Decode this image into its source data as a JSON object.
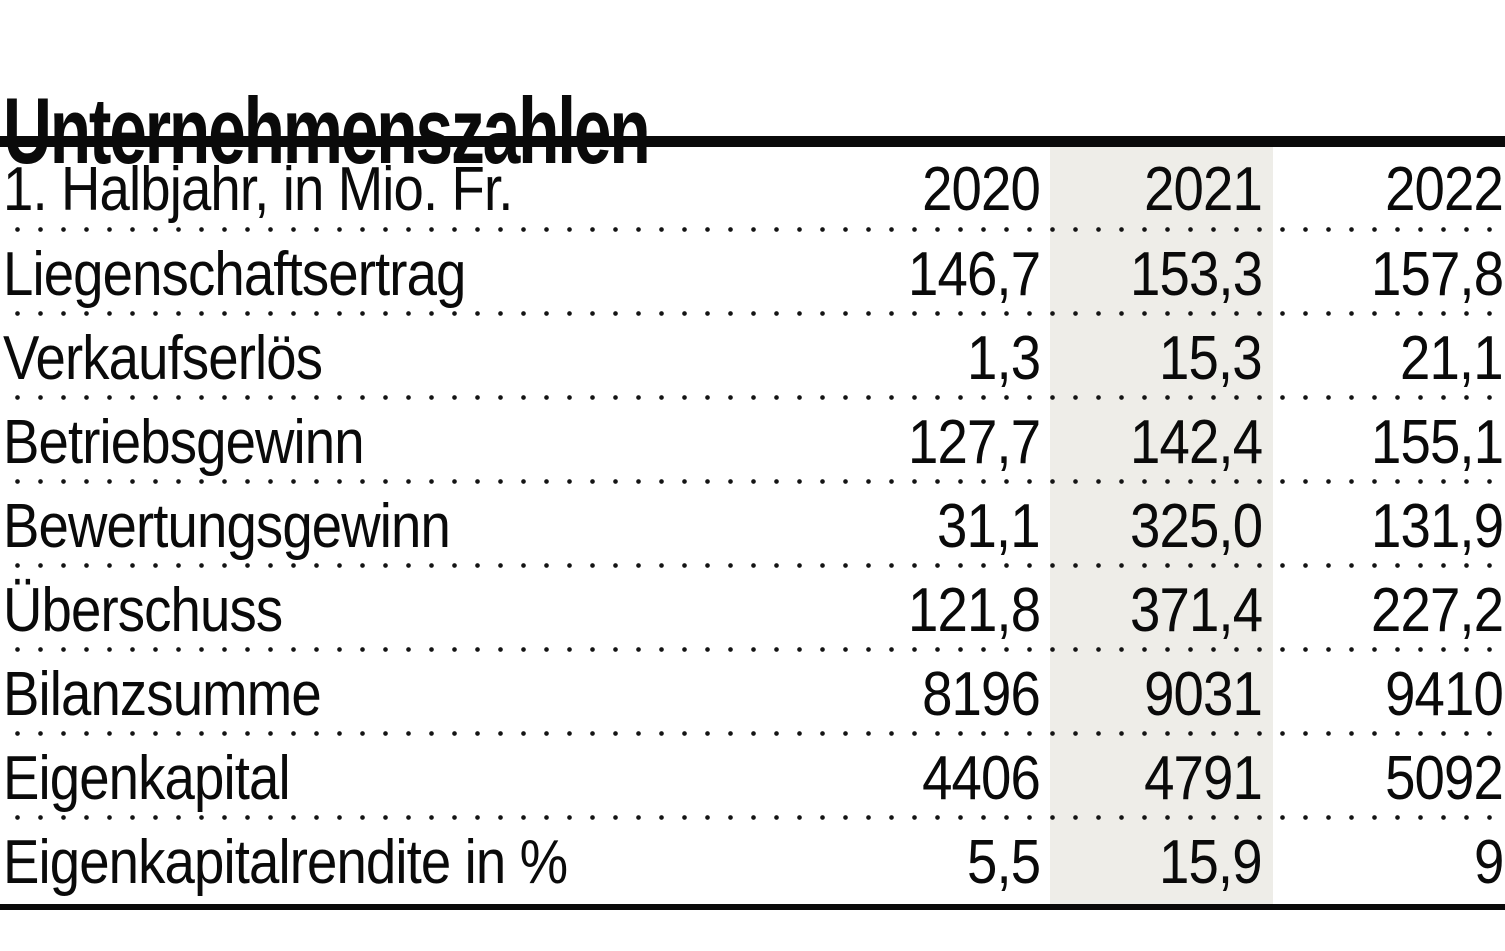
{
  "title": "Unternehmenszahlen",
  "table": {
    "header": {
      "label": "1. Halbjahr, in Mio. Fr.",
      "years": [
        "2020",
        "2021",
        "2022"
      ]
    },
    "rows": [
      {
        "label": "Liegenschaftsertrag",
        "values": [
          "146,7",
          "153,3",
          "157,8"
        ]
      },
      {
        "label": "Verkaufserlös",
        "values": [
          "1,3",
          "15,3",
          "21,1"
        ]
      },
      {
        "label": "Betriebsgewinn",
        "values": [
          "127,7",
          "142,4",
          "155,1"
        ]
      },
      {
        "label": "Bewertungsgewinn",
        "values": [
          "31,1",
          "325,0",
          "131,9"
        ]
      },
      {
        "label": "Überschuss",
        "values": [
          "121,8",
          "371,4",
          "227,2"
        ]
      },
      {
        "label": "Bilanzsumme",
        "values": [
          "8196",
          "9031",
          "9410"
        ]
      },
      {
        "label": "Eigenkapital",
        "values": [
          "4406",
          "4791",
          "5092"
        ]
      },
      {
        "label": "Eigenkapitalrendite in %",
        "values": [
          "5,5",
          "15,9",
          "9"
        ]
      }
    ],
    "highlight_column": "2021",
    "colors": {
      "highlight_band": "#eeede8",
      "text": "#0a0a0a",
      "rule": "#0a0a0a",
      "background": "#ffffff"
    }
  },
  "chart_data": {
    "type": "table",
    "title": "Unternehmenszahlen",
    "subtitle": "1. Halbjahr, in Mio. Fr.",
    "columns": [
      "2020",
      "2021",
      "2022"
    ],
    "rows": [
      {
        "label": "Liegenschaftsertrag",
        "values": [
          146.7,
          153.3,
          157.8
        ]
      },
      {
        "label": "Verkaufserlös",
        "values": [
          1.3,
          15.3,
          21.1
        ]
      },
      {
        "label": "Betriebsgewinn",
        "values": [
          127.7,
          142.4,
          155.1
        ]
      },
      {
        "label": "Bewertungsgewinn",
        "values": [
          31.1,
          325.0,
          131.9
        ]
      },
      {
        "label": "Überschuss",
        "values": [
          121.8,
          371.4,
          227.2
        ]
      },
      {
        "label": "Bilanzsumme",
        "values": [
          8196,
          9031,
          9410
        ]
      },
      {
        "label": "Eigenkapital",
        "values": [
          4406,
          4791,
          5092
        ]
      },
      {
        "label": "Eigenkapitalrendite in %",
        "values": [
          5.5,
          15.9,
          9
        ]
      }
    ],
    "layout_hints": {
      "highlighted_column": "2021",
      "number_format": "de-CH comma decimals",
      "grid": "dotted row separators"
    }
  }
}
